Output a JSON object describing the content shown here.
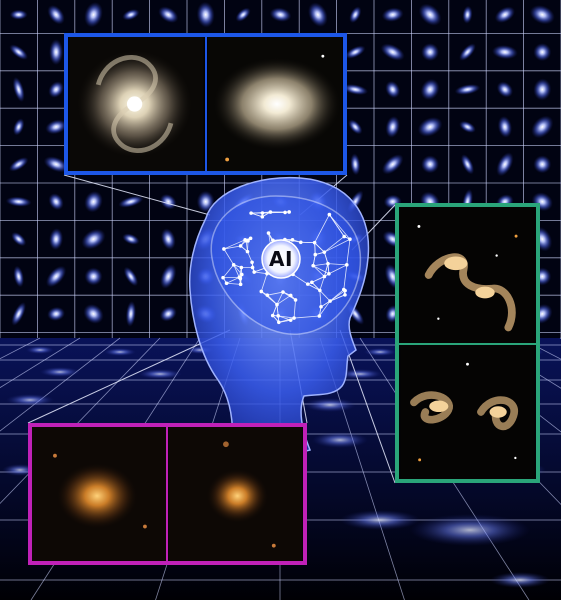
{
  "brain": {
    "label": "AI"
  },
  "colors": {
    "background": "#010312",
    "grid_line": "#cfd6ff",
    "galaxy_glow": "#6f84ff",
    "head": "#4a73ff",
    "frame_spiral": "#1d57e8",
    "frame_merger": "#2aa57a",
    "frame_elliptical": "#c021b8"
  },
  "icons": {
    "brain": "brain-network-icon",
    "spiral": "spiral-galaxy-icon",
    "elliptical": "elliptical-galaxy-icon",
    "merger": "merging-galaxies-icon",
    "red": "red-elliptical-galaxy-icon"
  }
}
